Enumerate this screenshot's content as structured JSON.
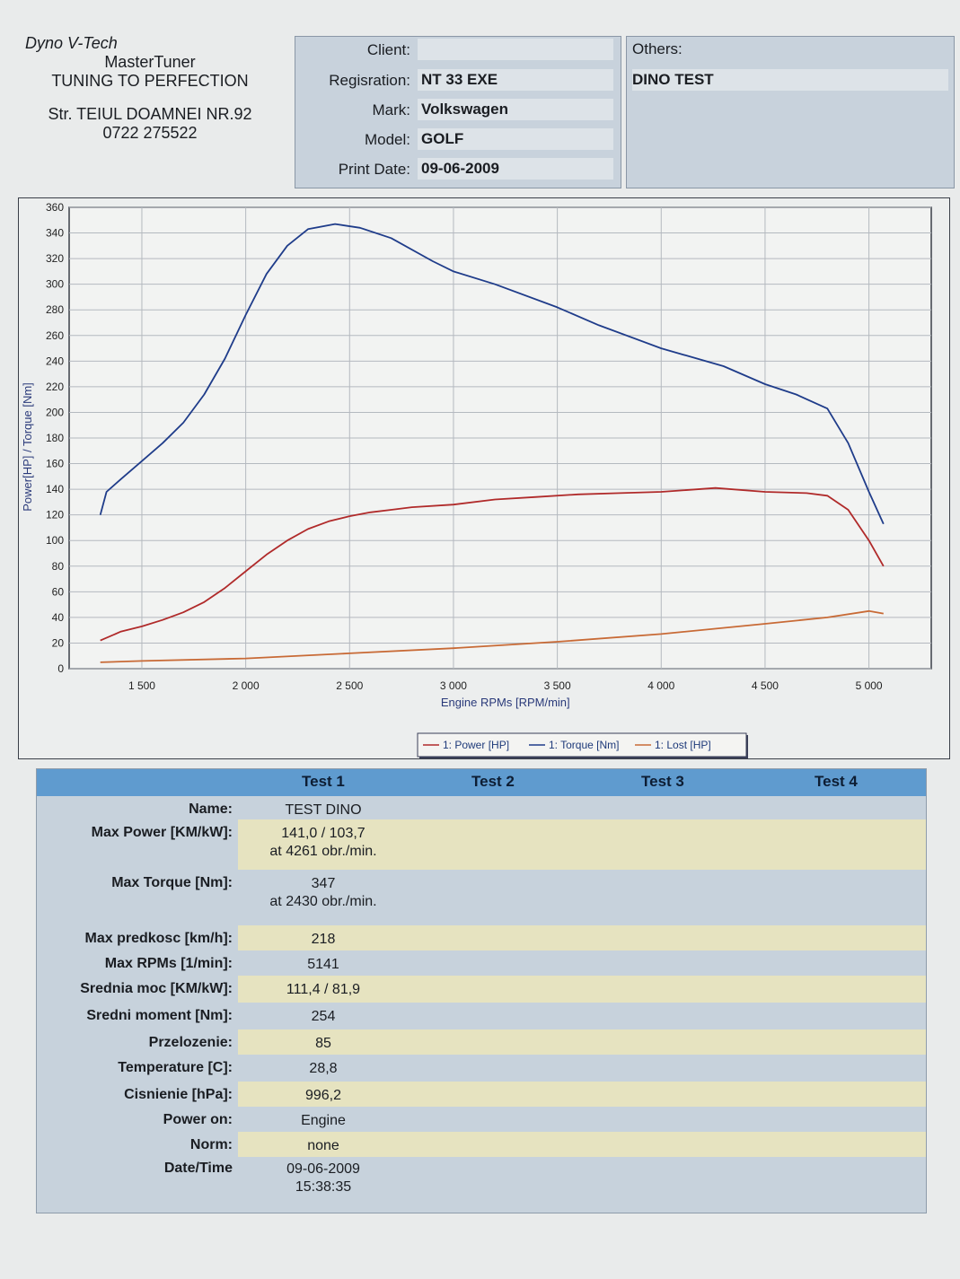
{
  "header": {
    "brand": "Dyno V-Tech",
    "product": "MasterTuner",
    "tagline": "TUNING TO PERFECTION",
    "address": "Str. TEIUL DOAMNEI NR.92",
    "phone": "0722 275522"
  },
  "info": {
    "client_label": "Client:",
    "client_value": "",
    "registration_label": "Regisration:",
    "registration_value": "NT 33 EXE",
    "mark_label": "Mark:",
    "mark_value": "Volkswagen",
    "model_label": "Model:",
    "model_value": "GOLF",
    "print_date_label": "Print Date:",
    "print_date_value": "09-06-2009",
    "others_label": "Others:",
    "others_value": "DINO TEST"
  },
  "chart_data": {
    "type": "line",
    "xlabel": "Engine RPMs [RPM/min]",
    "ylabel": "Power[HP] / Torque [Nm]",
    "xlim": [
      1150,
      5300
    ],
    "ylim": [
      0,
      360
    ],
    "xticks": [
      1500,
      2000,
      2500,
      3000,
      3500,
      4000,
      4500,
      5000
    ],
    "xtick_labels": [
      "1 500",
      "2 000",
      "2 500",
      "3 000",
      "3 500",
      "4 000",
      "4 500",
      "5 000"
    ],
    "yticks": [
      0,
      20,
      40,
      60,
      80,
      100,
      120,
      140,
      160,
      180,
      200,
      220,
      240,
      260,
      280,
      300,
      320,
      340,
      360
    ],
    "grid": true,
    "legend_position": "bottom",
    "series": [
      {
        "name": "1: Power [HP]",
        "color": "#b02a2a",
        "x": [
          1300,
          1400,
          1500,
          1600,
          1700,
          1800,
          1900,
          2000,
          2100,
          2200,
          2300,
          2400,
          2500,
          2600,
          2700,
          2800,
          3000,
          3200,
          3400,
          3600,
          3800,
          4000,
          4261,
          4500,
          4700,
          4800,
          4900,
          5000,
          5070
        ],
        "y": [
          22,
          29,
          33,
          38,
          44,
          52,
          63,
          76,
          89,
          100,
          109,
          115,
          119,
          122,
          124,
          126,
          128,
          132,
          134,
          136,
          137,
          138,
          141,
          138,
          137,
          135,
          124,
          100,
          80
        ]
      },
      {
        "name": "1: Torque [Nm]",
        "color": "#1f3c8a",
        "x": [
          1300,
          1330,
          1400,
          1500,
          1600,
          1700,
          1800,
          1900,
          2000,
          2100,
          2200,
          2300,
          2430,
          2550,
          2700,
          2900,
          3000,
          3200,
          3500,
          3700,
          4000,
          4300,
          4500,
          4650,
          4800,
          4900,
          5000,
          5070
        ],
        "y": [
          120,
          138,
          148,
          162,
          176,
          192,
          214,
          242,
          276,
          308,
          330,
          343,
          347,
          344,
          336,
          318,
          310,
          300,
          282,
          268,
          250,
          236,
          222,
          214,
          203,
          176,
          138,
          113
        ]
      },
      {
        "name": "1: Lost [HP]",
        "color": "#c86a36",
        "x": [
          1300,
          1500,
          2000,
          2500,
          3000,
          3500,
          4000,
          4500,
          4800,
          5000,
          5070
        ],
        "y": [
          5,
          6,
          8,
          12,
          16,
          21,
          27,
          35,
          40,
          45,
          43
        ]
      }
    ]
  },
  "results": {
    "tests": [
      "Test 1",
      "Test 2",
      "Test 3",
      "Test 4"
    ],
    "rows": [
      {
        "label": "Name:",
        "value": "TEST DINO",
        "value2": ""
      },
      {
        "label": "Max Power [KM/kW]:",
        "value": "141,0 / 103,7",
        "value2": "at 4261 obr./min."
      },
      {
        "label": "Max Torque [Nm]:",
        "value": "347",
        "value2": "at 2430 obr./min."
      },
      {
        "label": "Max predkosc [km/h]:",
        "value": "218",
        "value2": ""
      },
      {
        "label": "Max RPMs [1/min]:",
        "value": "5141",
        "value2": ""
      },
      {
        "label": "Srednia moc [KM/kW]:",
        "value": "111,4 / 81,9",
        "value2": ""
      },
      {
        "label": "Sredni moment [Nm]:",
        "value": "254",
        "value2": ""
      },
      {
        "label": "Przelozenie:",
        "value": "85",
        "value2": ""
      },
      {
        "label": "Temperature [C]:",
        "value": "28,8",
        "value2": ""
      },
      {
        "label": "Cisnienie [hPa]:",
        "value": "996,2",
        "value2": ""
      },
      {
        "label": "Power on:",
        "value": "Engine",
        "value2": ""
      },
      {
        "label": "Norm:",
        "value": "none",
        "value2": ""
      },
      {
        "label": "Date/Time",
        "value": "09-06-2009",
        "value2": "15:38:35"
      }
    ],
    "band_colors": [
      "#c7d2dc",
      "#e6e3c0"
    ]
  }
}
